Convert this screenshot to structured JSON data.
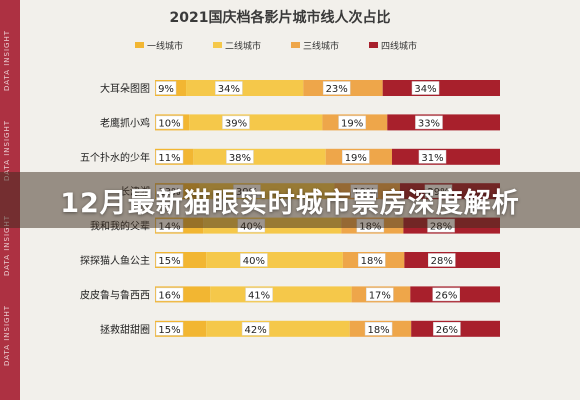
{
  "banner": {
    "title": "12月最新猫眼实时城市票房深度解析"
  },
  "watermark": {
    "text": "DATA INSIGHT"
  },
  "colors": {
    "tier1": "#f2b632",
    "tier2": "#f5c84a",
    "tier3": "#eea64a",
    "tier4": "#a8202c",
    "label_box": "#ffffff",
    "sidebar": "#ad3142",
    "background": "#f2f0eb"
  },
  "chart_data": {
    "type": "bar",
    "orientation": "horizontal",
    "stacked": true,
    "normalized": true,
    "title": "2021国庆档各影片城市线人次占比",
    "legend_position": "top",
    "categories": [
      "大耳朵图图",
      "老鹰抓小鸡",
      "五个扑水的少年",
      "长津湖",
      "我和我的父辈",
      "探探猫人鱼公主",
      "皮皮鲁与鲁西西",
      "拯救甜甜圈"
    ],
    "series": [
      {
        "name": "一线城市",
        "values": [
          9,
          10,
          11,
          13,
          14,
          15,
          16,
          15
        ]
      },
      {
        "name": "二线城市",
        "values": [
          34,
          39,
          38,
          39,
          40,
          40,
          41,
          42
        ]
      },
      {
        "name": "三线城市",
        "values": [
          23,
          19,
          19,
          19,
          18,
          18,
          17,
          18
        ]
      },
      {
        "name": "四线城市",
        "values": [
          34,
          33,
          31,
          29,
          28,
          28,
          26,
          26
        ]
      }
    ],
    "value_suffix": "%"
  }
}
